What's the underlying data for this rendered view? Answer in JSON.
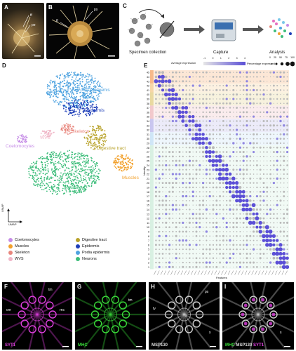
{
  "panels": {
    "A": {
      "letter": "A",
      "arrows": [
        "tf",
        "pe"
      ]
    },
    "B": {
      "letter": "B",
      "arrows": [
        "ps",
        "tf"
      ]
    },
    "C": {
      "letter": "C",
      "steps": [
        "Specimen collection",
        "Capture",
        "Analysis"
      ]
    },
    "D": {
      "letter": "D",
      "clusters": [
        {
          "name": "Podia epidermis",
          "color": "#4fa3e0"
        },
        {
          "name": "Epidermis",
          "color": "#1f3fb8"
        },
        {
          "name": "Skeleton",
          "color": "#e8867d"
        },
        {
          "name": "Coelomocytes",
          "color": "#c58be6"
        },
        {
          "name": "WVS",
          "color": "#f0b6c7"
        },
        {
          "name": "Digestive tract",
          "color": "#b8a22a"
        },
        {
          "name": "Muscles",
          "color": "#f2a02b"
        },
        {
          "name": "Neurons",
          "color": "#3dbd7a"
        }
      ],
      "axis_y": "UMAP",
      "axis_x": "UMAP"
    },
    "legend": [
      {
        "name": "Coelomocytes",
        "color": "#c58be6"
      },
      {
        "name": "Digestive tract",
        "color": "#b8a22a"
      },
      {
        "name": "Muscles",
        "color": "#f2a02b"
      },
      {
        "name": "Epidermis",
        "color": "#1f3fb8"
      },
      {
        "name": "Skeleton",
        "color": "#e8867d"
      },
      {
        "name": "Podia epidermis",
        "color": "#4fa3e0"
      },
      {
        "name": "WVS",
        "color": "#f0b6c7"
      },
      {
        "name": "Neurons",
        "color": "#3dbd7a"
      }
    ],
    "E": {
      "letter": "E",
      "avg_expr_label": "Average expression",
      "avg_expr_ticks": [
        "-1",
        "0",
        "1",
        "2",
        "3",
        "4"
      ],
      "pct_expr_label": "Percentage expressed",
      "pct_expr_ticks": [
        "0",
        "25",
        "50",
        "75",
        "100"
      ],
      "y_axis_label": "Identity",
      "x_axis_label": "Features",
      "clusters": [
        "45",
        "44",
        "43",
        "42",
        "41",
        "40",
        "39",
        "38",
        "37",
        "36",
        "35",
        "34",
        "33",
        "32",
        "31",
        "30",
        "29",
        "28",
        "27",
        "26",
        "25",
        "24",
        "23",
        "22",
        "21",
        "20",
        "19",
        "18",
        "17",
        "16",
        "15",
        "14",
        "13",
        "12",
        "11",
        "10",
        "9",
        "8",
        "7",
        "6",
        "5",
        "4",
        "3",
        "2",
        "1"
      ]
    },
    "F": {
      "letter": "F",
      "marker": "SYT1",
      "annotations": [
        "tm",
        "cnr",
        "rnc"
      ]
    },
    "G": {
      "letter": "G",
      "marker": "MHC",
      "annotations": [
        "tm"
      ]
    },
    "H": {
      "letter": "H",
      "marker": "MSP130",
      "annotations": [
        "ps",
        "tv",
        "s",
        "s"
      ]
    },
    "I": {
      "letter": "I",
      "marker_a": "MHC",
      "marker_b": "MSP130",
      "marker_c": "SYT1",
      "annotations": [
        "s"
      ]
    }
  },
  "colors": {
    "dot_purple": "#5b4fd6",
    "dot_grey": "#b9b9b9",
    "syt1": "#e040e0",
    "mhc": "#3adc3a",
    "msp130": "#d0d0d0"
  }
}
